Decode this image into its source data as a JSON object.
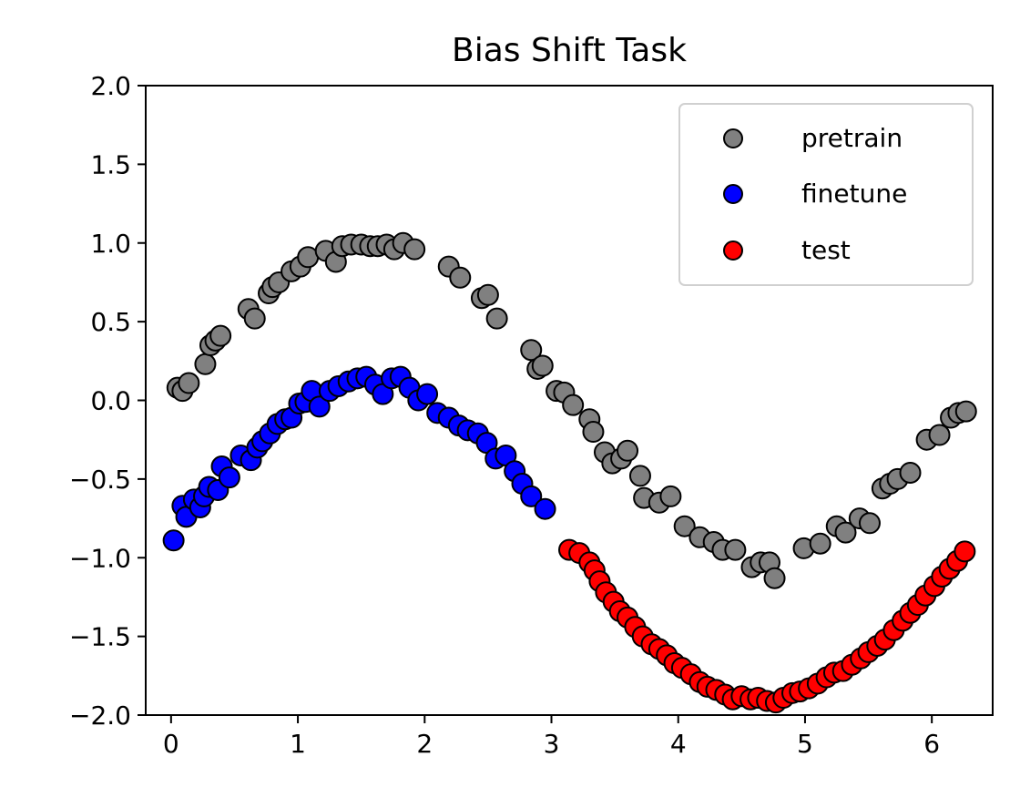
{
  "chart_data": {
    "type": "scatter",
    "title": "Bias Shift Task",
    "xlabel": "",
    "ylabel": "",
    "xlim": [
      -0.2,
      6.48
    ],
    "ylim": [
      -2.0,
      2.0
    ],
    "xticks": [
      0,
      1,
      2,
      3,
      4,
      5,
      6
    ],
    "xtick_labels": [
      "0",
      "1",
      "2",
      "3",
      "4",
      "5",
      "6"
    ],
    "yticks": [
      -2.0,
      -1.5,
      -1.0,
      -0.5,
      0.0,
      0.5,
      1.0,
      1.5,
      2.0
    ],
    "ytick_labels": [
      "−2.0",
      "−1.5",
      "−1.0",
      "−0.5",
      "0.0",
      "0.5",
      "1.0",
      "1.5",
      "2.0"
    ],
    "grid": false,
    "legend_position": "top-right",
    "series": [
      {
        "name": "pretrain",
        "color": "#808080",
        "edge_color": "#000000",
        "x": [
          0.05,
          0.09,
          0.14,
          0.27,
          0.31,
          0.35,
          0.39,
          0.61,
          0.66,
          0.77,
          0.8,
          0.85,
          0.95,
          1.02,
          1.08,
          1.22,
          1.3,
          1.35,
          1.42,
          1.5,
          1.57,
          1.63,
          1.7,
          1.76,
          1.83,
          1.92,
          2.19,
          2.28,
          2.45,
          2.5,
          2.57,
          2.84,
          2.89,
          2.93,
          3.04,
          3.1,
          3.17,
          3.3,
          3.33,
          3.42,
          3.48,
          3.55,
          3.6,
          3.7,
          3.73,
          3.85,
          3.94,
          4.05,
          4.17,
          4.28,
          4.35,
          4.45,
          4.58,
          4.65,
          4.72,
          4.76,
          4.99,
          5.12,
          5.25,
          5.32,
          5.43,
          5.51,
          5.61,
          5.67,
          5.73,
          5.83,
          5.96,
          6.06,
          6.15,
          6.21,
          6.27
        ],
        "y": [
          0.08,
          0.06,
          0.11,
          0.23,
          0.35,
          0.38,
          0.41,
          0.58,
          0.52,
          0.68,
          0.72,
          0.75,
          0.82,
          0.85,
          0.91,
          0.95,
          0.88,
          0.98,
          0.99,
          0.99,
          0.98,
          0.98,
          0.99,
          0.96,
          1.0,
          0.96,
          0.85,
          0.78,
          0.65,
          0.67,
          0.52,
          0.32,
          0.2,
          0.22,
          0.06,
          0.05,
          -0.03,
          -0.12,
          -0.2,
          -0.33,
          -0.4,
          -0.37,
          -0.32,
          -0.48,
          -0.62,
          -0.65,
          -0.61,
          -0.8,
          -0.87,
          -0.9,
          -0.95,
          -0.95,
          -1.06,
          -1.03,
          -1.03,
          -1.13,
          -0.94,
          -0.91,
          -0.8,
          -0.84,
          -0.75,
          -0.78,
          -0.56,
          -0.53,
          -0.5,
          -0.46,
          -0.25,
          -0.22,
          -0.11,
          -0.08,
          -0.07
        ]
      },
      {
        "name": "finetune",
        "color": "#0000ff",
        "edge_color": "#000000",
        "x": [
          0.02,
          0.09,
          0.12,
          0.18,
          0.23,
          0.26,
          0.3,
          0.37,
          0.4,
          0.46,
          0.55,
          0.63,
          0.68,
          0.72,
          0.78,
          0.84,
          0.9,
          0.95,
          1.01,
          1.06,
          1.11,
          1.17,
          1.25,
          1.32,
          1.4,
          1.47,
          1.54,
          1.61,
          1.67,
          1.74,
          1.81,
          1.88,
          1.95,
          2.02,
          2.1,
          2.19,
          2.27,
          2.34,
          2.42,
          2.49,
          2.56,
          2.64,
          2.71,
          2.77,
          2.84,
          2.95
        ],
        "y": [
          -0.89,
          -0.67,
          -0.74,
          -0.63,
          -0.68,
          -0.61,
          -0.55,
          -0.57,
          -0.42,
          -0.49,
          -0.35,
          -0.38,
          -0.3,
          -0.26,
          -0.21,
          -0.15,
          -0.12,
          -0.11,
          -0.02,
          -0.01,
          0.06,
          -0.04,
          0.06,
          0.09,
          0.12,
          0.14,
          0.15,
          0.1,
          0.04,
          0.14,
          0.15,
          0.08,
          0.0,
          0.04,
          -0.08,
          -0.11,
          -0.16,
          -0.19,
          -0.21,
          -0.27,
          -0.37,
          -0.35,
          -0.45,
          -0.53,
          -0.61,
          -0.69
        ]
      },
      {
        "name": "test",
        "color": "#ff0000",
        "edge_color": "#000000",
        "x": [
          3.14,
          3.22,
          3.3,
          3.34,
          3.38,
          3.43,
          3.49,
          3.54,
          3.6,
          3.66,
          3.72,
          3.79,
          3.85,
          3.91,
          3.97,
          4.03,
          4.1,
          4.17,
          4.23,
          4.3,
          4.37,
          4.43,
          4.5,
          4.57,
          4.63,
          4.7,
          4.77,
          4.83,
          4.9,
          4.96,
          5.03,
          5.1,
          5.17,
          5.23,
          5.3,
          5.37,
          5.44,
          5.5,
          5.57,
          5.63,
          5.7,
          5.77,
          5.83,
          5.89,
          5.95,
          6.02,
          6.08,
          6.14,
          6.2,
          6.26
        ],
        "y": [
          -0.95,
          -0.97,
          -1.03,
          -1.08,
          -1.15,
          -1.22,
          -1.28,
          -1.34,
          -1.38,
          -1.44,
          -1.5,
          -1.55,
          -1.58,
          -1.62,
          -1.67,
          -1.7,
          -1.74,
          -1.79,
          -1.82,
          -1.84,
          -1.87,
          -1.9,
          -1.88,
          -1.9,
          -1.89,
          -1.91,
          -1.92,
          -1.89,
          -1.86,
          -1.85,
          -1.83,
          -1.8,
          -1.76,
          -1.73,
          -1.72,
          -1.68,
          -1.64,
          -1.6,
          -1.56,
          -1.52,
          -1.46,
          -1.4,
          -1.35,
          -1.3,
          -1.24,
          -1.18,
          -1.12,
          -1.07,
          -1.02,
          -0.96
        ]
      }
    ]
  }
}
